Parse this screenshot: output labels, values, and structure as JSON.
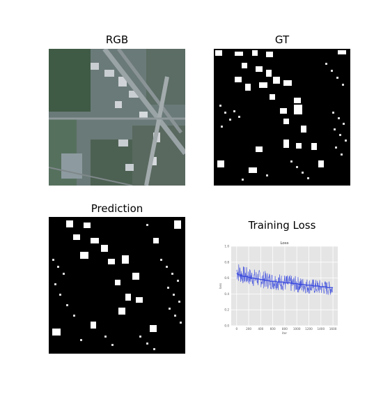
{
  "panels": {
    "rgb_title": "RGB",
    "gt_title": "GT",
    "prediction_title": "Prediction",
    "loss_title": "Training Loss"
  },
  "colors": {
    "loss_line": "#3344dd",
    "plot_bg": "#e5e5e5",
    "mask_fg": "#ffffff",
    "mask_bg": "#000000"
  },
  "chart_data": {
    "type": "line",
    "title": "Loss",
    "xlabel": "iter",
    "ylabel": "loss",
    "xlim": [
      -90,
      1680
    ],
    "ylim": [
      0.0,
      1.0
    ],
    "xticks": [
      0,
      200,
      400,
      600,
      800,
      1000,
      1200,
      1400,
      1600
    ],
    "yticks": [
      0.0,
      0.2,
      0.4,
      0.6,
      0.8,
      1.0
    ],
    "grid": true,
    "series": [
      {
        "x_start": 0,
        "x_end": 1600,
        "x_step": 40,
        "mean": [
          0.66,
          0.64,
          0.63,
          0.62,
          0.62,
          0.61,
          0.6,
          0.6,
          0.59,
          0.59,
          0.58,
          0.58,
          0.57,
          0.57,
          0.56,
          0.56,
          0.56,
          0.55,
          0.55,
          0.55,
          0.54,
          0.54,
          0.54,
          0.53,
          0.53,
          0.53,
          0.52,
          0.52,
          0.52,
          0.51,
          0.51,
          0.51,
          0.5,
          0.5,
          0.5,
          0.49,
          0.49,
          0.49,
          0.48,
          0.48,
          0.48
        ],
        "min": [
          0.56,
          0.54,
          0.53,
          0.52,
          0.51,
          0.51,
          0.5,
          0.49,
          0.49,
          0.48,
          0.48,
          0.47,
          0.47,
          0.46,
          0.46,
          0.45,
          0.45,
          0.45,
          0.44,
          0.44,
          0.43,
          0.43,
          0.43,
          0.42,
          0.42,
          0.42,
          0.41,
          0.41,
          0.41,
          0.4,
          0.4,
          0.4,
          0.4,
          0.39,
          0.39,
          0.39,
          0.39,
          0.38,
          0.38,
          0.38,
          0.38
        ],
        "max": [
          0.82,
          0.8,
          0.76,
          0.75,
          0.74,
          0.73,
          0.72,
          0.72,
          0.71,
          0.71,
          0.7,
          0.69,
          0.69,
          0.68,
          0.68,
          0.67,
          0.67,
          0.66,
          0.66,
          0.65,
          0.65,
          0.64,
          0.64,
          0.63,
          0.63,
          0.62,
          0.62,
          0.61,
          0.61,
          0.6,
          0.6,
          0.59,
          0.59,
          0.58,
          0.58,
          0.58,
          0.57,
          0.57,
          0.56,
          0.56,
          0.56
        ]
      }
    ]
  }
}
